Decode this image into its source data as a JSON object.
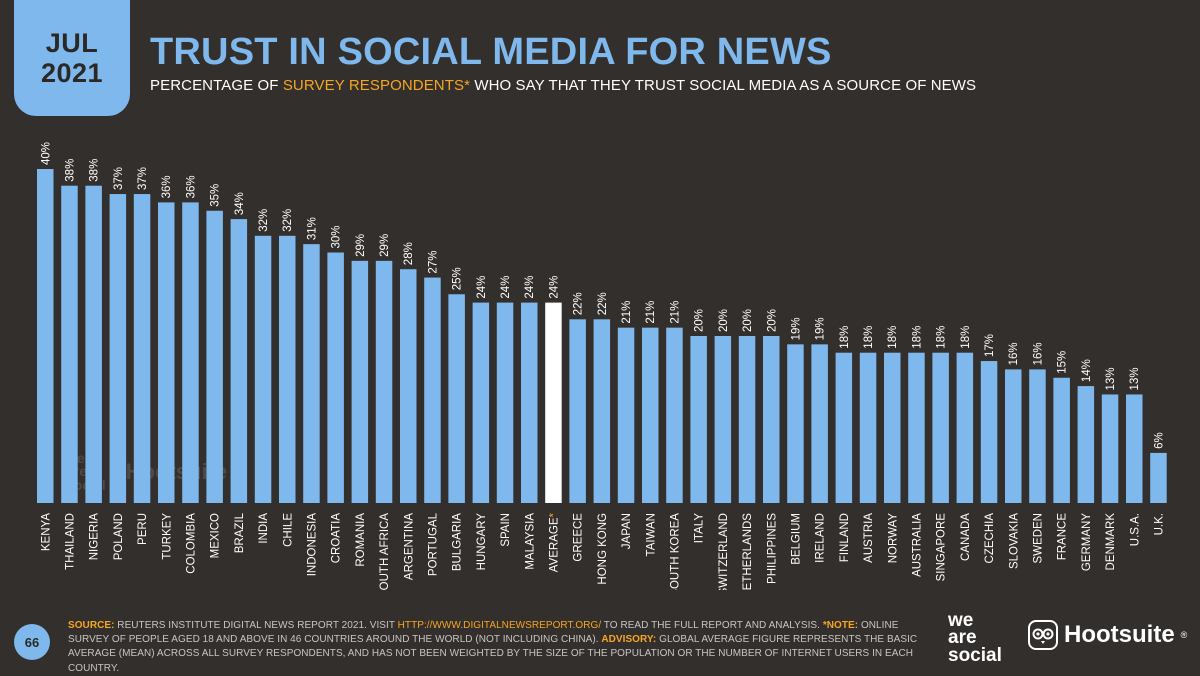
{
  "header": {
    "month": "JUL",
    "year": "2021",
    "title": "TRUST IN SOCIAL MEDIA FOR NEWS",
    "subtitle_pre": "PERCENTAGE OF ",
    "subtitle_hl": "SURVEY RESPONDENTS*",
    "subtitle_post": " WHO SAY THAT THEY TRUST SOCIAL MEDIA AS A SOURCE OF NEWS"
  },
  "colors": {
    "background": "#332f2c",
    "bar": "#7eb8ec",
    "highlight_bar": "#ffffff",
    "accent": "#f5a623",
    "label": "#ffffff"
  },
  "chart_data": {
    "type": "bar",
    "title": "TRUST IN SOCIAL MEDIA FOR NEWS",
    "categories": [
      "KENYA",
      "THAILAND",
      "NIGERIA",
      "POLAND",
      "PERU",
      "TURKEY",
      "COLOMBIA",
      "MEXICO",
      "BRAZIL",
      "INDIA",
      "CHILE",
      "INDONESIA",
      "CROATIA",
      "ROMANIA",
      "SOUTH AFRICA",
      "ARGENTINA",
      "PORTUGAL",
      "BULGARIA",
      "HUNGARY",
      "SPAIN",
      "MALAYSIA",
      "AVERAGE",
      "GREECE",
      "HONG KONG",
      "JAPAN",
      "TAIWAN",
      "SOUTH KOREA",
      "ITALY",
      "SWITZERLAND",
      "NETHERLANDS",
      "PHILIPPINES",
      "BELGIUM",
      "IRELAND",
      "FINLAND",
      "AUSTRIA",
      "NORWAY",
      "AUSTRALIA",
      "SINGAPORE",
      "CANADA",
      "CZECHIA",
      "SLOVAKIA",
      "SWEDEN",
      "FRANCE",
      "GERMANY",
      "DENMARK",
      "U.S.A.",
      "U.K."
    ],
    "values": [
      40,
      38,
      38,
      37,
      37,
      36,
      36,
      35,
      34,
      32,
      32,
      31,
      30,
      29,
      29,
      28,
      27,
      25,
      24,
      24,
      24,
      24,
      22,
      22,
      21,
      21,
      21,
      20,
      20,
      20,
      20,
      19,
      19,
      18,
      18,
      18,
      18,
      18,
      18,
      17,
      16,
      16,
      15,
      14,
      13,
      13,
      6
    ],
    "value_labels": [
      "40%",
      "38%",
      "38%",
      "37%",
      "37%",
      "36%",
      "36%",
      "35%",
      "34%",
      "32%",
      "32%",
      "31%",
      "30%",
      "29%",
      "29%",
      "28%",
      "27%",
      "25%",
      "24%",
      "24%",
      "24%",
      "24%",
      "22%",
      "22%",
      "21%",
      "21%",
      "21%",
      "20%",
      "20%",
      "20%",
      "20%",
      "19%",
      "19%",
      "18%",
      "18%",
      "18%",
      "18%",
      "18%",
      "18%",
      "17%",
      "16%",
      "16%",
      "15%",
      "14%",
      "13%",
      "13%",
      "6%"
    ],
    "highlight_category": "AVERAGE",
    "highlight_suffix": "*",
    "ylim": [
      0,
      40
    ],
    "grid": false,
    "legend": "none"
  },
  "footer": {
    "page_number": "66",
    "source_label": "SOURCE:",
    "source_text": " REUTERS INSTITUTE DIGITAL NEWS REPORT 2021. VISIT ",
    "source_url": "HTTP://WWW.DIGITALNEWSREPORT.ORG/",
    "source_tail": " TO READ THE FULL REPORT AND ANALYSIS. ",
    "note_label": "*NOTE:",
    "note_text": " ONLINE SURVEY OF PEOPLE AGED 18 AND ABOVE IN 46 COUNTRIES AROUND THE WORLD (NOT INCLUDING CHINA). ",
    "advisory_label": "ADVISORY:",
    "advisory_text": " GLOBAL AVERAGE FIGURE REPRESENTS THE BASIC AVERAGE (MEAN) ACROSS ALL SURVEY RESPONDENTS, AND HAS NOT BEEN WEIGHTED BY THE SIZE OF THE POPULATION OR THE NUMBER OF INTERNET USERS IN EACH COUNTRY."
  },
  "branding": {
    "we": "we",
    "are": "are",
    "social": "social",
    "hootsuite": "Hootsuite",
    "hootsuite_reg": "®"
  }
}
